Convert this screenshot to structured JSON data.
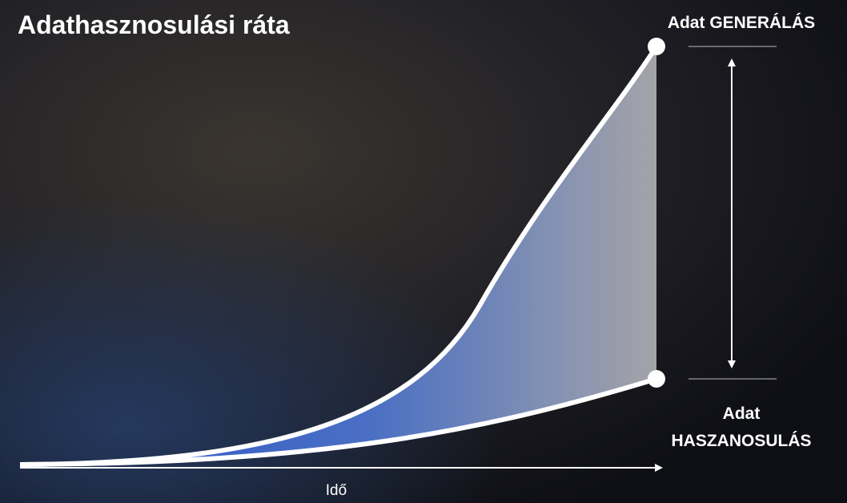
{
  "title": "Adathasznosulási ráta",
  "labels": {
    "generation": "Adat GENERÁLÁS",
    "utilization": [
      "Adat",
      "HASZANOSULÁS"
    ],
    "x_axis": "Idő"
  }
}
